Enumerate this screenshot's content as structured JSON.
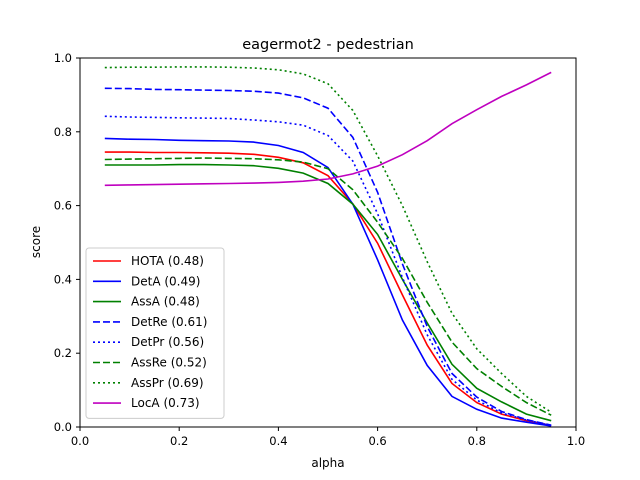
{
  "chart_data": {
    "type": "line",
    "title": "eagermot2 - pedestrian",
    "xlabel": "alpha",
    "ylabel": "score",
    "xlim": [
      0.0,
      1.0
    ],
    "ylim": [
      0.0,
      1.0
    ],
    "xticks": [
      "0.0",
      "0.2",
      "0.4",
      "0.6",
      "0.8",
      "1.0"
    ],
    "yticks": [
      "0.0",
      "0.2",
      "0.4",
      "0.6",
      "0.8",
      "1.0"
    ],
    "grid": false,
    "legend_position": "lower-left",
    "x": [
      0.05,
      0.1,
      0.15,
      0.2,
      0.25,
      0.3,
      0.35,
      0.4,
      0.45,
      0.5,
      0.55,
      0.6,
      0.65,
      0.7,
      0.75,
      0.8,
      0.85,
      0.9,
      0.95
    ],
    "series": [
      {
        "name": "HOTA (0.48)",
        "color": "#ff0000",
        "dash": "solid",
        "values": [
          0.745,
          0.745,
          0.744,
          0.744,
          0.743,
          0.742,
          0.739,
          0.731,
          0.716,
          0.681,
          0.605,
          0.498,
          0.358,
          0.222,
          0.118,
          0.066,
          0.035,
          0.017,
          0.004
        ]
      },
      {
        "name": "DetA (0.49)",
        "color": "#0000ff",
        "dash": "solid",
        "values": [
          0.782,
          0.78,
          0.779,
          0.777,
          0.776,
          0.775,
          0.772,
          0.763,
          0.744,
          0.703,
          0.604,
          0.453,
          0.29,
          0.167,
          0.083,
          0.048,
          0.024,
          0.013,
          0.003
        ]
      },
      {
        "name": "AssA (0.48)",
        "color": "#008000",
        "dash": "solid",
        "values": [
          0.71,
          0.71,
          0.71,
          0.711,
          0.711,
          0.71,
          0.708,
          0.701,
          0.688,
          0.66,
          0.604,
          0.522,
          0.4,
          0.282,
          0.17,
          0.105,
          0.068,
          0.035,
          0.017
        ]
      },
      {
        "name": "DetRe (0.61)",
        "color": "#0000ff",
        "dash": "dashed",
        "values": [
          0.918,
          0.917,
          0.915,
          0.914,
          0.913,
          0.912,
          0.91,
          0.905,
          0.892,
          0.864,
          0.785,
          0.636,
          0.442,
          0.272,
          0.145,
          0.081,
          0.042,
          0.02,
          0.005
        ]
      },
      {
        "name": "DetPr (0.56)",
        "color": "#0000ff",
        "dash": "dotted",
        "values": [
          0.842,
          0.84,
          0.839,
          0.838,
          0.837,
          0.836,
          0.832,
          0.827,
          0.818,
          0.79,
          0.721,
          0.578,
          0.405,
          0.25,
          0.129,
          0.073,
          0.038,
          0.019,
          0.004
        ]
      },
      {
        "name": "AssRe (0.52)",
        "color": "#008000",
        "dash": "dashed",
        "values": [
          0.725,
          0.726,
          0.727,
          0.728,
          0.729,
          0.728,
          0.727,
          0.724,
          0.718,
          0.7,
          0.643,
          0.555,
          0.457,
          0.338,
          0.23,
          0.158,
          0.11,
          0.066,
          0.032
        ]
      },
      {
        "name": "AssPr (0.69)",
        "color": "#008000",
        "dash": "dotted",
        "values": [
          0.974,
          0.975,
          0.975,
          0.976,
          0.976,
          0.975,
          0.973,
          0.968,
          0.957,
          0.93,
          0.858,
          0.735,
          0.6,
          0.448,
          0.308,
          0.212,
          0.145,
          0.083,
          0.04
        ]
      },
      {
        "name": "LocA (0.73)",
        "color": "#bf00bf",
        "dash": "solid",
        "values": [
          0.655,
          0.656,
          0.657,
          0.658,
          0.659,
          0.66,
          0.661,
          0.663,
          0.666,
          0.672,
          0.686,
          0.707,
          0.738,
          0.776,
          0.822,
          0.86,
          0.896,
          0.927,
          0.961
        ]
      }
    ]
  }
}
